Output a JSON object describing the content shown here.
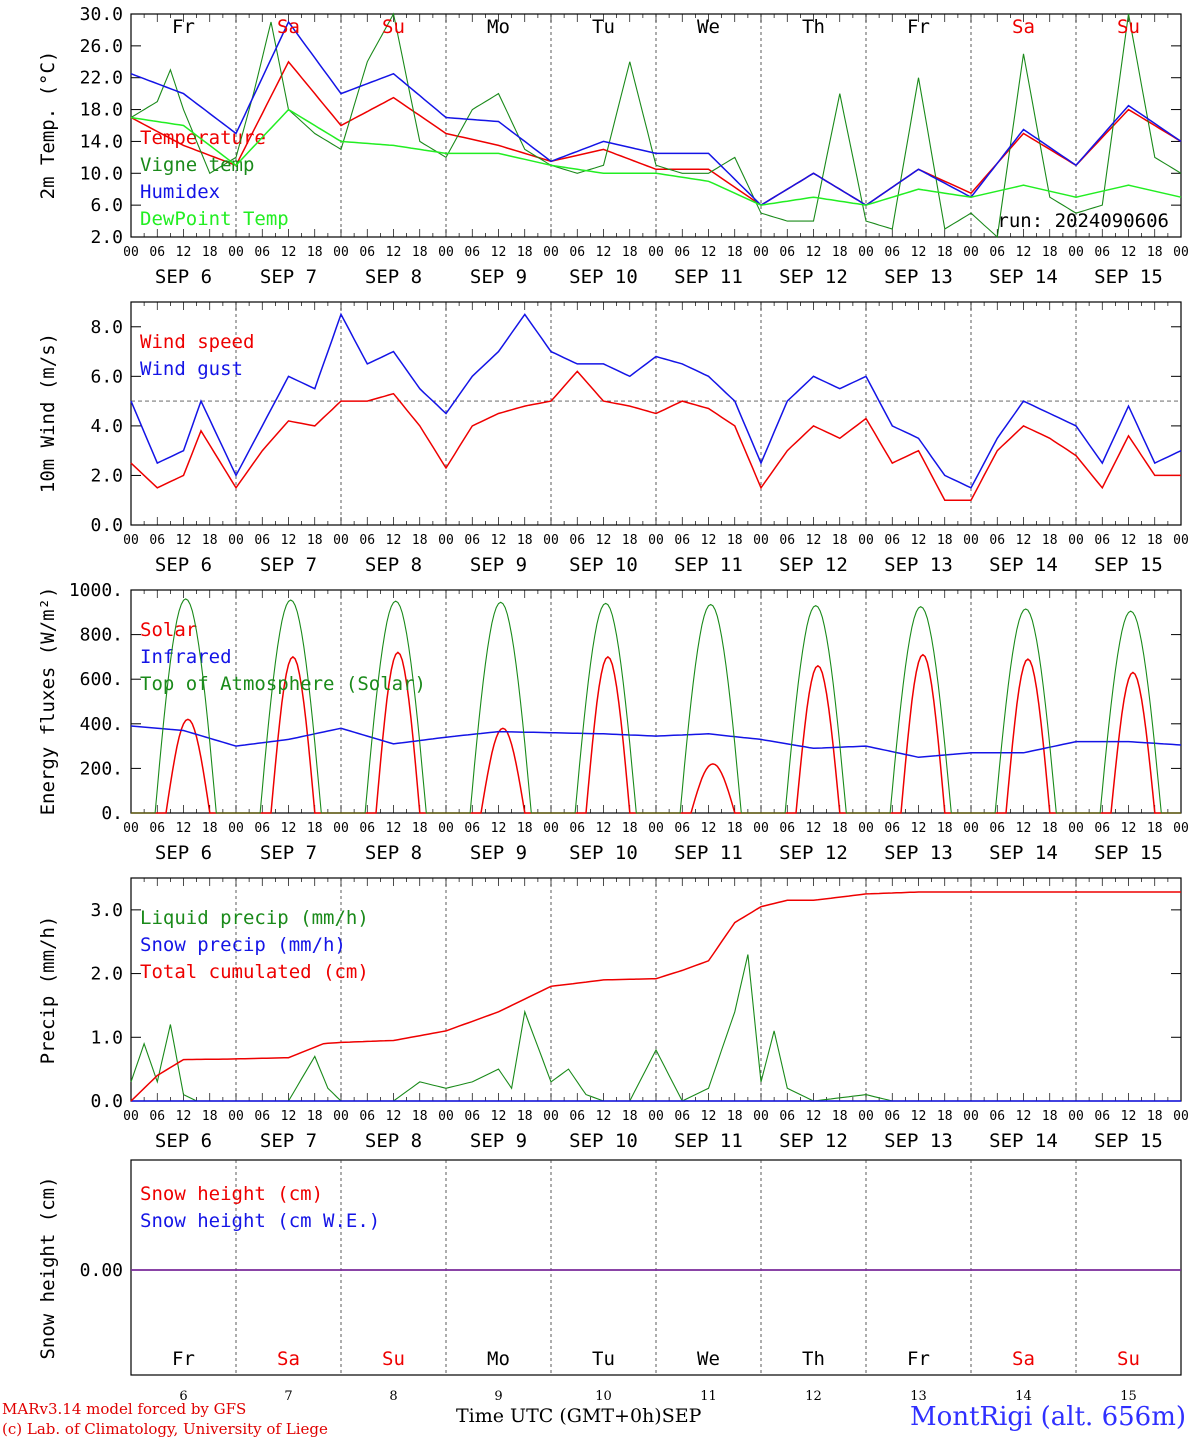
{
  "time_axis": {
    "day_names": [
      "Fr",
      "Sa",
      "Su",
      "Mo",
      "Tu",
      "We",
      "Th",
      "Fr",
      "Sa",
      "Su"
    ],
    "weekend_flags": [
      false,
      true,
      true,
      false,
      false,
      false,
      false,
      false,
      true,
      true
    ],
    "date_labels": [
      "SEP  6",
      "SEP  7",
      "SEP  8",
      "SEP  9",
      "SEP 10",
      "SEP 11",
      "SEP 12",
      "SEP 13",
      "SEP 14",
      "SEP 15"
    ],
    "day_numbers": [
      "6",
      "7",
      "8",
      "9",
      "10",
      "11",
      "12",
      "13",
      "14",
      "15"
    ],
    "hour_labels": [
      "00",
      "06",
      "12",
      "18"
    ],
    "final_hour_label": "00",
    "start": "2024-09-06T00:00Z",
    "days": 10
  },
  "colors": {
    "red": "#ee0000",
    "green": "#1a8a1a",
    "blue": "#1414e6",
    "lightgreen": "#22ee22",
    "purple": "#7a2a9a"
  },
  "chart_data": [
    {
      "id": "temperature",
      "type": "line",
      "ylabel": "2m Temp. (°C)",
      "ylim": [
        2,
        30
      ],
      "yticks": [
        "30.0",
        "26.0",
        "22.0",
        "18.0",
        "14.0",
        "10.0",
        "6.0",
        "2.0"
      ],
      "run_label": "run: 2024090606",
      "series": [
        {
          "name": "Temperature",
          "color": "red",
          "x_hours": [
            0,
            12,
            24,
            36,
            48,
            60,
            72,
            84,
            96,
            108,
            120,
            132,
            144,
            156,
            168,
            180,
            192,
            204,
            216,
            228,
            240
          ],
          "values": [
            17,
            13.5,
            11,
            24,
            16,
            19.5,
            15,
            13.5,
            11.5,
            13,
            10.5,
            10.5,
            6,
            10,
            6,
            10.5,
            7.5,
            15,
            11,
            18,
            14
          ]
        },
        {
          "name": "Vigne temp",
          "color": "green",
          "x_hours": [
            0,
            6,
            9,
            12,
            18,
            24,
            28,
            32,
            36,
            42,
            48,
            54,
            60,
            66,
            72,
            78,
            84,
            90,
            96,
            102,
            108,
            114,
            120,
            126,
            132,
            138,
            144,
            150,
            156,
            162,
            168,
            174,
            180,
            186,
            192,
            198,
            204,
            210,
            216,
            222,
            228,
            234,
            240
          ],
          "values": [
            17,
            19,
            23,
            18,
            10,
            12,
            20,
            29,
            18,
            15,
            13,
            24,
            30,
            14,
            12,
            18,
            20,
            13,
            11,
            10,
            11,
            24,
            11,
            10,
            10,
            12,
            5,
            4,
            4,
            20,
            4,
            3,
            22,
            3,
            5,
            2,
            25,
            7,
            5,
            6,
            30,
            12,
            10
          ]
        },
        {
          "name": "Humidex",
          "color": "blue",
          "x_hours": [
            0,
            12,
            24,
            36,
            48,
            60,
            72,
            84,
            96,
            108,
            120,
            132,
            144,
            156,
            168,
            180,
            192,
            204,
            216,
            228,
            240
          ],
          "values": [
            22.5,
            20,
            15,
            29,
            20,
            22.5,
            17,
            16.5,
            11.5,
            14,
            12.5,
            12.5,
            6,
            10,
            6,
            10.5,
            7,
            15.5,
            11,
            18.5,
            14
          ]
        },
        {
          "name": "DewPoint Temp",
          "color": "lightgreen",
          "x_hours": [
            0,
            12,
            24,
            36,
            48,
            60,
            72,
            84,
            96,
            108,
            120,
            132,
            144,
            156,
            168,
            180,
            192,
            204,
            216,
            228,
            240
          ],
          "values": [
            17,
            16,
            11,
            18,
            14,
            13.5,
            12.5,
            12.5,
            11,
            10,
            10,
            9,
            6,
            7,
            6,
            8,
            7,
            8.5,
            7,
            8.5,
            7
          ]
        }
      ]
    },
    {
      "id": "wind",
      "type": "line",
      "ylabel": "10m Wind (m/s)",
      "ylim": [
        0,
        9
      ],
      "yticks": [
        "8.0",
        "6.0",
        "4.0",
        "2.0",
        "0.0"
      ],
      "reference_line": 5,
      "series": [
        {
          "name": "Wind speed",
          "color": "red",
          "x_hours": [
            0,
            6,
            12,
            16,
            24,
            30,
            36,
            42,
            48,
            54,
            60,
            66,
            72,
            78,
            84,
            90,
            96,
            102,
            108,
            114,
            120,
            126,
            132,
            138,
            144,
            150,
            156,
            162,
            168,
            174,
            180,
            186,
            192,
            198,
            204,
            210,
            216,
            222,
            228,
            234,
            240
          ],
          "values": [
            2.5,
            1.5,
            2.0,
            3.8,
            1.5,
            3.0,
            4.2,
            4.0,
            5.0,
            5.0,
            5.3,
            4.0,
            2.3,
            4.0,
            4.5,
            4.8,
            5.0,
            6.2,
            5.0,
            4.8,
            4.5,
            5.0,
            4.7,
            4.0,
            1.5,
            3.0,
            4.0,
            3.5,
            4.3,
            2.5,
            3.0,
            1.0,
            1.0,
            3.0,
            4.0,
            3.5,
            2.8,
            1.5,
            3.6,
            2.0,
            2.0
          ]
        },
        {
          "name": "Wind gust",
          "color": "blue",
          "x_hours": [
            0,
            6,
            12,
            16,
            24,
            30,
            36,
            42,
            48,
            54,
            60,
            66,
            72,
            78,
            84,
            90,
            96,
            102,
            108,
            114,
            120,
            126,
            132,
            138,
            144,
            150,
            156,
            162,
            168,
            174,
            180,
            186,
            192,
            198,
            204,
            210,
            216,
            222,
            228,
            234,
            240
          ],
          "values": [
            5.0,
            2.5,
            3.0,
            5.0,
            2.0,
            4.0,
            6.0,
            5.5,
            8.5,
            6.5,
            7.0,
            5.5,
            4.5,
            6.0,
            7.0,
            8.5,
            7.0,
            6.5,
            6.5,
            6.0,
            6.8,
            6.5,
            6.0,
            5.0,
            2.5,
            5.0,
            6.0,
            5.5,
            6.0,
            4.0,
            3.5,
            2.0,
            1.5,
            3.5,
            5.0,
            4.5,
            4.0,
            2.5,
            4.8,
            2.5,
            3.0
          ]
        }
      ]
    },
    {
      "id": "energy",
      "type": "line",
      "ylabel": "Energy fluxes (W/m²)",
      "ylim": [
        0,
        1000
      ],
      "yticks": [
        "1000.",
        "800.",
        "600.",
        "400.",
        "200.",
        "0."
      ],
      "series": [
        {
          "name": "Solar",
          "color": "red",
          "daily_peak": [
            420,
            700,
            720,
            380,
            700,
            220,
            660,
            710,
            690,
            630
          ],
          "peak_hour": 13
        },
        {
          "name": "Infrared",
          "color": "blue",
          "x_hours": [
            0,
            12,
            24,
            36,
            48,
            60,
            72,
            84,
            96,
            108,
            120,
            132,
            144,
            156,
            168,
            180,
            192,
            204,
            216,
            228,
            240
          ],
          "values": [
            390,
            370,
            300,
            330,
            380,
            310,
            340,
            365,
            360,
            355,
            345,
            355,
            330,
            290,
            300,
            250,
            270,
            270,
            320,
            320,
            305
          ]
        },
        {
          "name": "Top of Atmosphere (Solar)",
          "color": "green",
          "daily_peak": [
            960,
            955,
            950,
            945,
            940,
            935,
            930,
            925,
            915,
            905
          ],
          "sunrise_hour": 5.5,
          "sunset_hour": 19.5
        }
      ]
    },
    {
      "id": "precip",
      "type": "line",
      "ylabel": "Precip (mm/h)",
      "ylim": [
        0,
        3.5
      ],
      "yticks": [
        "3.0",
        "2.0",
        "1.0",
        "0.0"
      ],
      "series": [
        {
          "name": "Liquid precip (mm/h)",
          "color": "green",
          "x_hours": [
            0,
            3,
            6,
            9,
            12,
            15,
            18,
            36,
            42,
            45,
            48,
            60,
            66,
            72,
            78,
            84,
            87,
            90,
            96,
            100,
            104,
            108,
            114,
            120,
            126,
            132,
            138,
            141,
            144,
            147,
            150,
            156,
            168,
            174,
            180
          ],
          "values": [
            0.3,
            0.9,
            0.3,
            1.2,
            0.1,
            0.0,
            0.0,
            0.0,
            0.7,
            0.2,
            0.0,
            0.0,
            0.3,
            0.2,
            0.3,
            0.5,
            0.2,
            1.4,
            0.3,
            0.5,
            0.1,
            0.0,
            0.0,
            0.8,
            0.0,
            0.2,
            1.4,
            2.3,
            0.3,
            1.1,
            0.2,
            0.0,
            0.1,
            0.0,
            0.0
          ]
        },
        {
          "name": "Snow precip (mm/h)",
          "color": "blue",
          "x_hours": [
            0,
            240
          ],
          "values": [
            0,
            0
          ]
        },
        {
          "name": "Total cumulated (cm)",
          "color": "red",
          "x_hours": [
            0,
            6,
            12,
            24,
            36,
            44,
            48,
            60,
            72,
            84,
            96,
            108,
            120,
            126,
            132,
            138,
            144,
            150,
            156,
            168,
            180,
            240
          ],
          "values": [
            0.0,
            0.4,
            0.65,
            0.66,
            0.68,
            0.9,
            0.92,
            0.95,
            1.1,
            1.4,
            1.8,
            1.9,
            1.92,
            2.05,
            2.2,
            2.8,
            3.05,
            3.15,
            3.15,
            3.25,
            3.28,
            3.28
          ]
        }
      ]
    },
    {
      "id": "snow",
      "type": "line",
      "ylabel": "Snow height (cm)",
      "yticks": [
        "0.00"
      ],
      "series": [
        {
          "name": "Snow height (cm)",
          "color": "red",
          "x_hours": [
            0,
            240
          ],
          "values": [
            0,
            0
          ]
        },
        {
          "name": "Snow height (cm W.E.)",
          "color": "blue",
          "x_hours": [
            0,
            240
          ],
          "values": [
            0,
            0
          ]
        }
      ]
    }
  ],
  "footer": {
    "model_line": "MARv3.14 model forced by GFS",
    "copyright_line": "(c) Lab. of Climatology, University of Liege",
    "xlabel": "Time UTC (GMT+0h)",
    "month": "SEP",
    "station": "MontRigi (alt. 656m)"
  }
}
